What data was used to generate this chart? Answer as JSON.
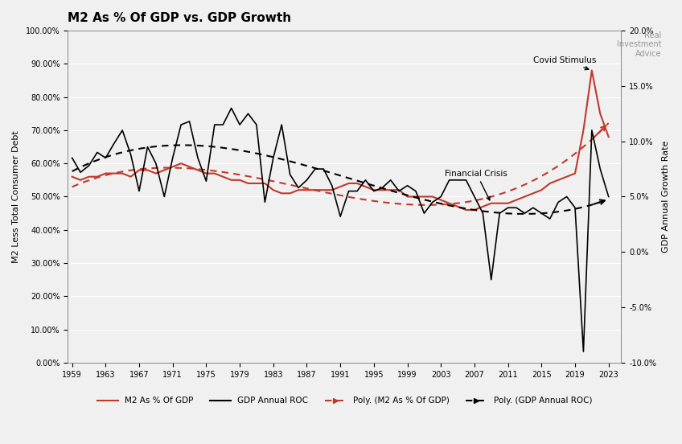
{
  "title": "M2 As % Of GDP vs. GDP Growth",
  "ylabel_left": "M2 Less Total Consumer Debt",
  "ylabel_right": "GDP Annual Growth Rate",
  "background_color": "#f0f0f0",
  "years": [
    1959,
    1960,
    1961,
    1962,
    1963,
    1964,
    1965,
    1966,
    1967,
    1968,
    1969,
    1970,
    1971,
    1972,
    1973,
    1974,
    1975,
    1976,
    1977,
    1978,
    1979,
    1980,
    1981,
    1982,
    1983,
    1984,
    1985,
    1986,
    1987,
    1988,
    1989,
    1990,
    1991,
    1992,
    1993,
    1994,
    1995,
    1996,
    1997,
    1998,
    1999,
    2000,
    2001,
    2002,
    2003,
    2004,
    2005,
    2006,
    2007,
    2008,
    2009,
    2010,
    2011,
    2012,
    2013,
    2014,
    2015,
    2016,
    2017,
    2018,
    2019,
    2020,
    2021,
    2022,
    2023
  ],
  "m2_pct": [
    56,
    55,
    56,
    56,
    57,
    57,
    57,
    56,
    58,
    58,
    57,
    58,
    59,
    60,
    59,
    58,
    57,
    57,
    56,
    55,
    55,
    54,
    54,
    54,
    52,
    51,
    51,
    52,
    52,
    52,
    52,
    52,
    53,
    54,
    54,
    53,
    52,
    52,
    52,
    52,
    50,
    50,
    50,
    50,
    49,
    48,
    47,
    46,
    46,
    47,
    48,
    48,
    48,
    49,
    50,
    51,
    52,
    54,
    55,
    56,
    57,
    70,
    88,
    75,
    68
  ],
  "gdp_roc": [
    8.5,
    7.2,
    7.8,
    9.0,
    8.5,
    9.8,
    11.0,
    8.8,
    5.5,
    9.5,
    8.0,
    5.0,
    8.5,
    11.5,
    11.8,
    8.5,
    6.4,
    11.5,
    11.5,
    13.0,
    11.5,
    12.5,
    11.5,
    4.5,
    8.5,
    11.5,
    7.0,
    5.8,
    6.5,
    7.5,
    7.5,
    6.0,
    3.2,
    5.5,
    5.5,
    6.5,
    5.5,
    5.8,
    6.5,
    5.5,
    6.0,
    5.5,
    3.5,
    4.5,
    5.0,
    6.5,
    6.5,
    6.5,
    5.0,
    3.5,
    -2.5,
    3.5,
    4.0,
    4.0,
    3.5,
    4.0,
    3.5,
    3.0,
    4.5,
    5.0,
    4.0,
    -9.0,
    11.0,
    7.5,
    5.0
  ],
  "xtick_years": [
    1959,
    1963,
    1967,
    1971,
    1975,
    1979,
    1983,
    1987,
    1991,
    1995,
    1999,
    2003,
    2007,
    2011,
    2015,
    2019,
    2023
  ],
  "ylim_left": [
    0,
    100
  ],
  "ylim_right": [
    -10,
    20
  ],
  "yticks_left": [
    0,
    10,
    20,
    30,
    40,
    50,
    60,
    70,
    80,
    90,
    100
  ],
  "ytick_labels_left": [
    "0.00%",
    "10.00%",
    "20.00%",
    "30.00%",
    "40.00%",
    "50.00%",
    "60.00%",
    "70.00%",
    "80.00%",
    "90.00%",
    "100.00%"
  ],
  "yticks_right": [
    -10,
    -5,
    0,
    5,
    10,
    15,
    20
  ],
  "ytick_labels_right": [
    "-10.0%",
    "-5.0%",
    "0.0%",
    "5.0%",
    "10.0%",
    "15.0%",
    "20.0%"
  ],
  "m2_color": "#c0392b",
  "gdp_color": "#000000",
  "poly_m2_color": "#c0392b",
  "poly_gdp_color": "#000000",
  "annotation_covid": "Covid Stimulus",
  "annotation_financial": "Financial Crisis",
  "legend_entries": [
    "M2 As % Of GDP",
    "GDP Annual ROC",
    "Poly. (M2 As % Of GDP)",
    "Poly. (GDP Annual ROC)"
  ]
}
